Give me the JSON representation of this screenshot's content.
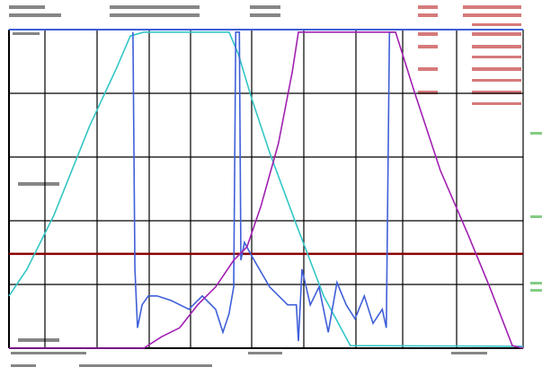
{
  "chart_data": {
    "type": "line",
    "xlim": [
      0,
      10
    ],
    "ylim": [
      0,
      5
    ],
    "reference_line": {
      "value": 1.48,
      "color": "#8b0000"
    },
    "series": [
      {
        "color": "#33c6c6",
        "x": [
          0,
          0.35,
          0.87,
          1.57,
          2.1,
          2.36,
          2.62,
          4.28,
          4.46,
          4.72,
          5.07,
          5.59,
          6.12,
          6.64,
          10
        ],
        "values": [
          0.82,
          1.24,
          2.08,
          3.49,
          4.41,
          4.9,
          4.96,
          4.96,
          4.62,
          3.92,
          3.07,
          1.94,
          0.82,
          0.04,
          0.03
        ]
      },
      {
        "color": "#3f5fd8",
        "x": [
          2.41,
          2.45,
          2.5,
          2.59,
          2.71,
          2.88,
          3.15,
          3.5,
          3.76,
          4.02,
          4.16,
          4.28,
          4.37,
          4.41,
          4.48,
          4.51,
          4.58,
          4.72,
          5.07,
          5.42,
          5.59,
          5.63,
          5.7,
          5.86,
          6.03,
          6.21,
          6.38,
          6.56,
          6.73,
          6.91,
          7.08,
          7.26,
          7.34,
          7.4,
          7.52
        ],
        "values": [
          4.96,
          1.24,
          0.32,
          0.68,
          0.82,
          0.82,
          0.75,
          0.61,
          0.82,
          0.61,
          0.25,
          0.54,
          0.96,
          4.96,
          4.96,
          1.38,
          1.66,
          1.45,
          0.96,
          0.68,
          0.68,
          0.11,
          1.24,
          0.68,
          0.96,
          0.25,
          1.03,
          0.68,
          0.46,
          0.82,
          0.39,
          0.61,
          0.32,
          4.96,
          4.96
        ]
      },
      {
        "color": "#a020b0",
        "x": [
          0,
          2.62,
          2.97,
          3.32,
          3.67,
          4.02,
          4.37,
          4.63,
          4.9,
          5.24,
          5.51,
          5.63,
          7.52,
          7.87,
          8.39,
          8.92,
          9.35,
          9.79,
          10
        ],
        "values": [
          0,
          0,
          0.18,
          0.32,
          0.68,
          0.96,
          1.38,
          1.59,
          2.23,
          3.21,
          4.34,
          4.96,
          4.96,
          4.06,
          2.79,
          1.8,
          0.96,
          0.04,
          0
        ]
      }
    ]
  }
}
